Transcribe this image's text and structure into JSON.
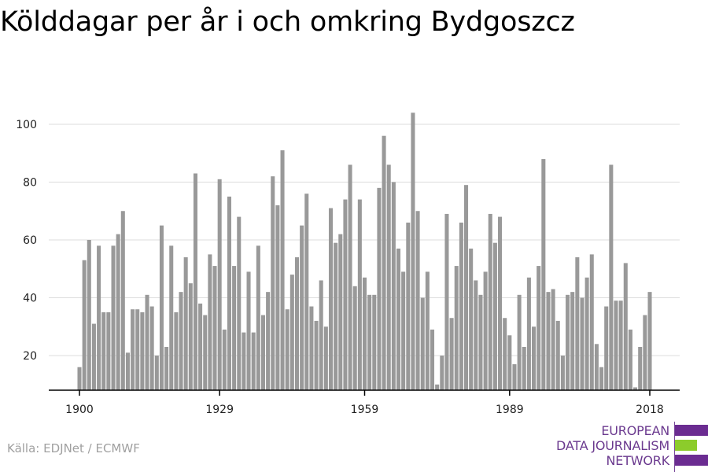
{
  "title": "Kölddagar per år i och omkring Bydgoszcz",
  "source": "Källa: EDJNet / ECMWF",
  "logo": {
    "line1": "EUROPEAN",
    "line2": "DATA JOURNALISM",
    "line3": "NETWORK",
    "colors": {
      "purple": "#6b2c91",
      "green": "#8ccc2b"
    }
  },
  "colors": {
    "bar": "#999999",
    "grid": "#dddddd",
    "axis": "#000000"
  },
  "chart_data": {
    "type": "bar",
    "x_tick_labels": [
      "1900",
      "1929",
      "1959",
      "1989",
      "2018"
    ],
    "y_tick_labels": [
      "20",
      "40",
      "60",
      "80",
      "100"
    ],
    "ylim": [
      8,
      110
    ],
    "grid": true,
    "x": [
      1900,
      1901,
      1902,
      1903,
      1904,
      1905,
      1906,
      1907,
      1908,
      1909,
      1910,
      1911,
      1912,
      1913,
      1914,
      1915,
      1916,
      1917,
      1918,
      1919,
      1920,
      1921,
      1922,
      1923,
      1924,
      1925,
      1926,
      1927,
      1928,
      1929,
      1930,
      1931,
      1932,
      1933,
      1934,
      1935,
      1936,
      1937,
      1938,
      1939,
      1940,
      1941,
      1942,
      1943,
      1944,
      1945,
      1946,
      1947,
      1948,
      1949,
      1950,
      1951,
      1952,
      1953,
      1954,
      1955,
      1956,
      1957,
      1958,
      1959,
      1960,
      1961,
      1962,
      1963,
      1964,
      1965,
      1966,
      1967,
      1968,
      1969,
      1970,
      1971,
      1972,
      1973,
      1974,
      1975,
      1976,
      1977,
      1978,
      1979,
      1980,
      1981,
      1982,
      1983,
      1984,
      1985,
      1986,
      1987,
      1988,
      1989,
      1990,
      1991,
      1992,
      1993,
      1994,
      1995,
      1996,
      1997,
      1998,
      1999,
      2000,
      2001,
      2002,
      2003,
      2004,
      2005,
      2006,
      2007,
      2008,
      2009,
      2010,
      2011,
      2012,
      2013,
      2014,
      2015,
      2016,
      2017,
      2018
    ],
    "values": [
      16,
      53,
      60,
      31,
      58,
      35,
      35,
      58,
      62,
      70,
      21,
      36,
      36,
      35,
      41,
      37,
      20,
      65,
      23,
      58,
      35,
      42,
      54,
      45,
      83,
      38,
      34,
      55,
      51,
      81,
      29,
      75,
      51,
      68,
      28,
      49,
      28,
      58,
      34,
      42,
      82,
      72,
      91,
      36,
      48,
      54,
      65,
      76,
      37,
      32,
      46,
      30,
      71,
      59,
      62,
      74,
      86,
      44,
      74,
      47,
      41,
      41,
      78,
      96,
      86,
      80,
      57,
      49,
      66,
      104,
      70,
      40,
      49,
      29,
      10,
      20,
      69,
      33,
      51,
      66,
      79,
      57,
      46,
      41,
      49,
      69,
      59,
      68,
      33,
      27,
      17,
      41,
      23,
      47,
      30,
      51,
      88,
      42,
      43,
      32,
      20,
      41,
      42,
      54,
      40,
      47,
      55,
      24,
      16,
      37,
      86,
      39,
      39,
      52,
      29,
      9,
      23,
      34,
      42
    ]
  }
}
